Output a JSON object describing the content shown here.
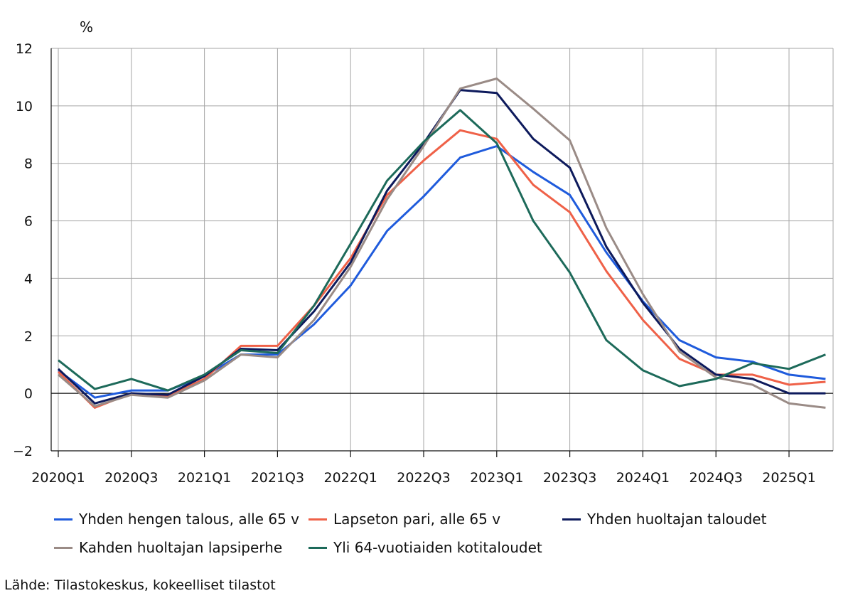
{
  "chart_data": {
    "type": "line",
    "title": "",
    "xlabel": "",
    "ylabel": "%",
    "ylim": [
      -2,
      12
    ],
    "yticks": [
      -2,
      0,
      2,
      4,
      6,
      8,
      10,
      12
    ],
    "grid": true,
    "legend_placement": "bottom",
    "x": [
      "2020Q1",
      "2020Q2",
      "2020Q3",
      "2020Q4",
      "2021Q1",
      "2021Q2",
      "2021Q3",
      "2021Q4",
      "2022Q1",
      "2022Q2",
      "2022Q3",
      "2022Q4",
      "2023Q1",
      "2023Q2",
      "2023Q3",
      "2023Q4",
      "2024Q1",
      "2024Q2",
      "2024Q3",
      "2024Q4",
      "2025Q1",
      "2025Q2"
    ],
    "xtick_labels": [
      "2020Q1",
      "2020Q3",
      "2021Q1",
      "2021Q3",
      "2022Q1",
      "2022Q3",
      "2023Q1",
      "2023Q3",
      "2024Q1",
      "2024Q3",
      "2025Q1"
    ],
    "series": [
      {
        "name": "Yhden hengen talous, alle 65 v",
        "color": "#1f5bdc",
        "values": [
          0.8,
          -0.15,
          0.1,
          0.1,
          0.6,
          1.35,
          1.35,
          2.4,
          3.75,
          5.65,
          6.85,
          8.2,
          8.6,
          7.7,
          6.9,
          4.9,
          3.2,
          1.85,
          1.25,
          1.1,
          0.65,
          0.5
        ]
      },
      {
        "name": "Lapseton pari, alle 65 v",
        "color": "#ef6148",
        "values": [
          0.75,
          -0.5,
          0.0,
          -0.1,
          0.5,
          1.65,
          1.65,
          3.05,
          4.7,
          6.9,
          8.1,
          9.15,
          8.85,
          7.25,
          6.3,
          4.25,
          2.55,
          1.2,
          0.65,
          0.65,
          0.3,
          0.4
        ]
      },
      {
        "name": "Yhden huoltajan taloudet",
        "color": "#0d1a5c",
        "values": [
          0.85,
          -0.35,
          0.0,
          -0.05,
          0.6,
          1.55,
          1.5,
          2.85,
          4.55,
          7.05,
          8.7,
          10.55,
          10.45,
          8.85,
          7.85,
          5.1,
          3.15,
          1.55,
          0.65,
          0.5,
          0.0,
          0.0
        ]
      },
      {
        "name": "Kahden huoltajan lapsiperhe",
        "color": "#9a8b86",
        "values": [
          0.65,
          -0.45,
          -0.05,
          -0.15,
          0.45,
          1.35,
          1.25,
          2.55,
          4.4,
          6.75,
          8.6,
          10.6,
          10.95,
          9.9,
          8.8,
          5.75,
          3.45,
          1.45,
          0.55,
          0.3,
          -0.35,
          -0.5
        ]
      },
      {
        "name": "Yli 64-vuotiaiden kotitaloudet",
        "color": "#1d6a5a",
        "values": [
          1.15,
          0.15,
          0.5,
          0.1,
          0.65,
          1.5,
          1.4,
          3.05,
          5.2,
          7.4,
          8.75,
          9.85,
          8.7,
          6.0,
          4.2,
          1.85,
          0.8,
          0.25,
          0.5,
          1.05,
          0.85,
          1.35
        ]
      }
    ]
  },
  "legend": [
    {
      "label": "Yhden hengen talous, alle 65 v",
      "color": "#1f5bdc"
    },
    {
      "label": "Lapseton pari, alle 65 v",
      "color": "#ef6148"
    },
    {
      "label": "Yhden huoltajan taloudet",
      "color": "#0d1a5c"
    },
    {
      "label": "Kahden huoltajan lapsiperhe",
      "color": "#9a8b86"
    },
    {
      "label": "Yli 64-vuotiaiden kotitaloudet",
      "color": "#1d6a5a"
    }
  ],
  "source": "Lähde: Tilastokeskus, kokeelliset tilastot"
}
